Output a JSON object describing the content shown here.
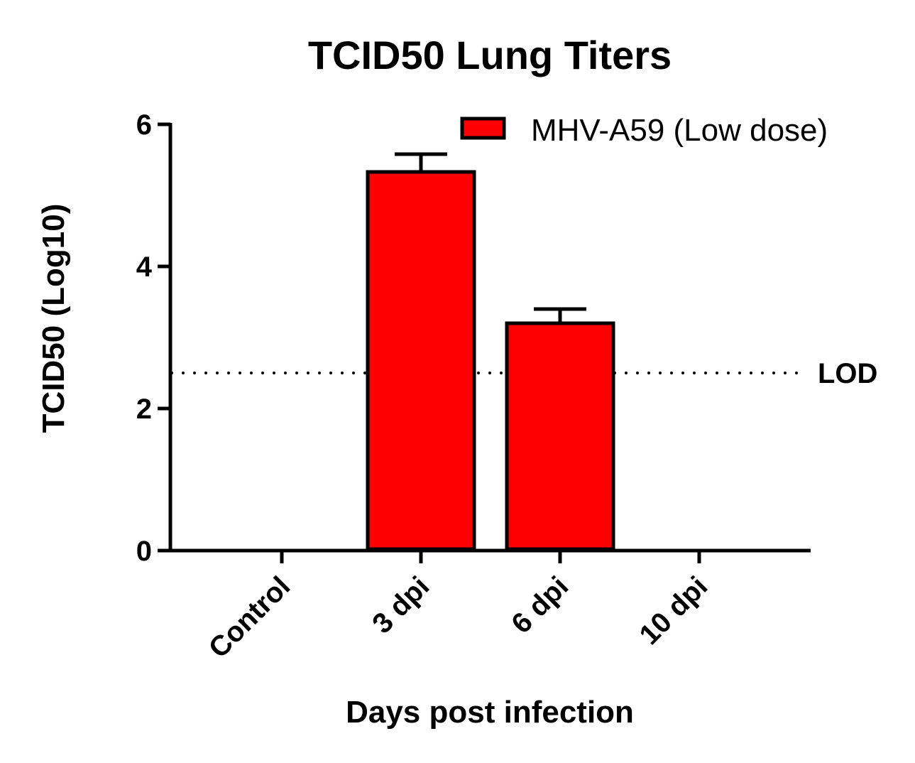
{
  "chart_data": {
    "type": "bar",
    "title": "TCID50 Lung Titers",
    "xlabel": "Days post infection",
    "ylabel": "TCID50 (Log10)",
    "categories": [
      "Control",
      "3 dpi",
      "6 dpi",
      "10 dpi"
    ],
    "series": [
      {
        "name": "MHV-A59 (Low dose)",
        "values": [
          0,
          5.33,
          3.2,
          0
        ],
        "error": [
          0,
          0.25,
          0.2,
          0
        ],
        "color": "#ff0000"
      }
    ],
    "ylim": [
      0,
      6
    ],
    "yticks": [
      0,
      2,
      4,
      6
    ],
    "reference_line": {
      "label": "LOD",
      "value": 2.5,
      "style": "dotted"
    },
    "legend_position": "top-right",
    "grid": false
  }
}
